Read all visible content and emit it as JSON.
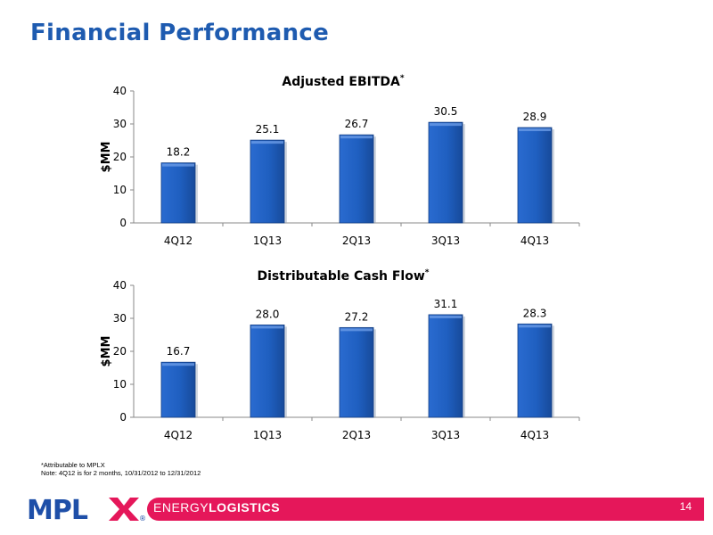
{
  "page": {
    "title": "Financial Performance",
    "footnote_line1": "*Attributable to MPLX",
    "footnote_line2": "Note: 4Q12 is for 2 months, 10/31/2012 to 12/31/2012",
    "footer_tagline_light": "ENERGY",
    "footer_tagline_bold": "LOGISTICS",
    "page_number": "14",
    "logo_text": "MPLX",
    "registered_mark": "®"
  },
  "colors": {
    "title": "#1e5bb0",
    "bar": "#1f5fc0",
    "footer": "#e5175a",
    "logo_blue": "#1e4fa8",
    "logo_red": "#e5175a"
  },
  "chart_data": [
    {
      "type": "bar",
      "title": "Adjusted EBITDA",
      "title_marker": "*",
      "ylabel": "$MM",
      "categories": [
        "4Q12",
        "1Q13",
        "2Q13",
        "3Q13",
        "4Q13"
      ],
      "values": [
        18.2,
        25.1,
        26.7,
        30.5,
        28.9
      ],
      "value_labels": [
        "18.2",
        "25.1",
        "26.7",
        "30.5",
        "28.9"
      ],
      "ylim": [
        0,
        40
      ],
      "yticks": [
        0,
        10,
        20,
        30,
        40
      ],
      "grid": false,
      "legend": "none"
    },
    {
      "type": "bar",
      "title": "Distributable Cash Flow",
      "title_marker": "*",
      "ylabel": "$MM",
      "categories": [
        "4Q12",
        "1Q13",
        "2Q13",
        "3Q13",
        "4Q13"
      ],
      "values": [
        16.7,
        28.0,
        27.2,
        31.1,
        28.3
      ],
      "value_labels": [
        "16.7",
        "28.0",
        "27.2",
        "31.1",
        "28.3"
      ],
      "ylim": [
        0,
        40
      ],
      "yticks": [
        0,
        10,
        20,
        30,
        40
      ],
      "grid": false,
      "legend": "none"
    }
  ]
}
